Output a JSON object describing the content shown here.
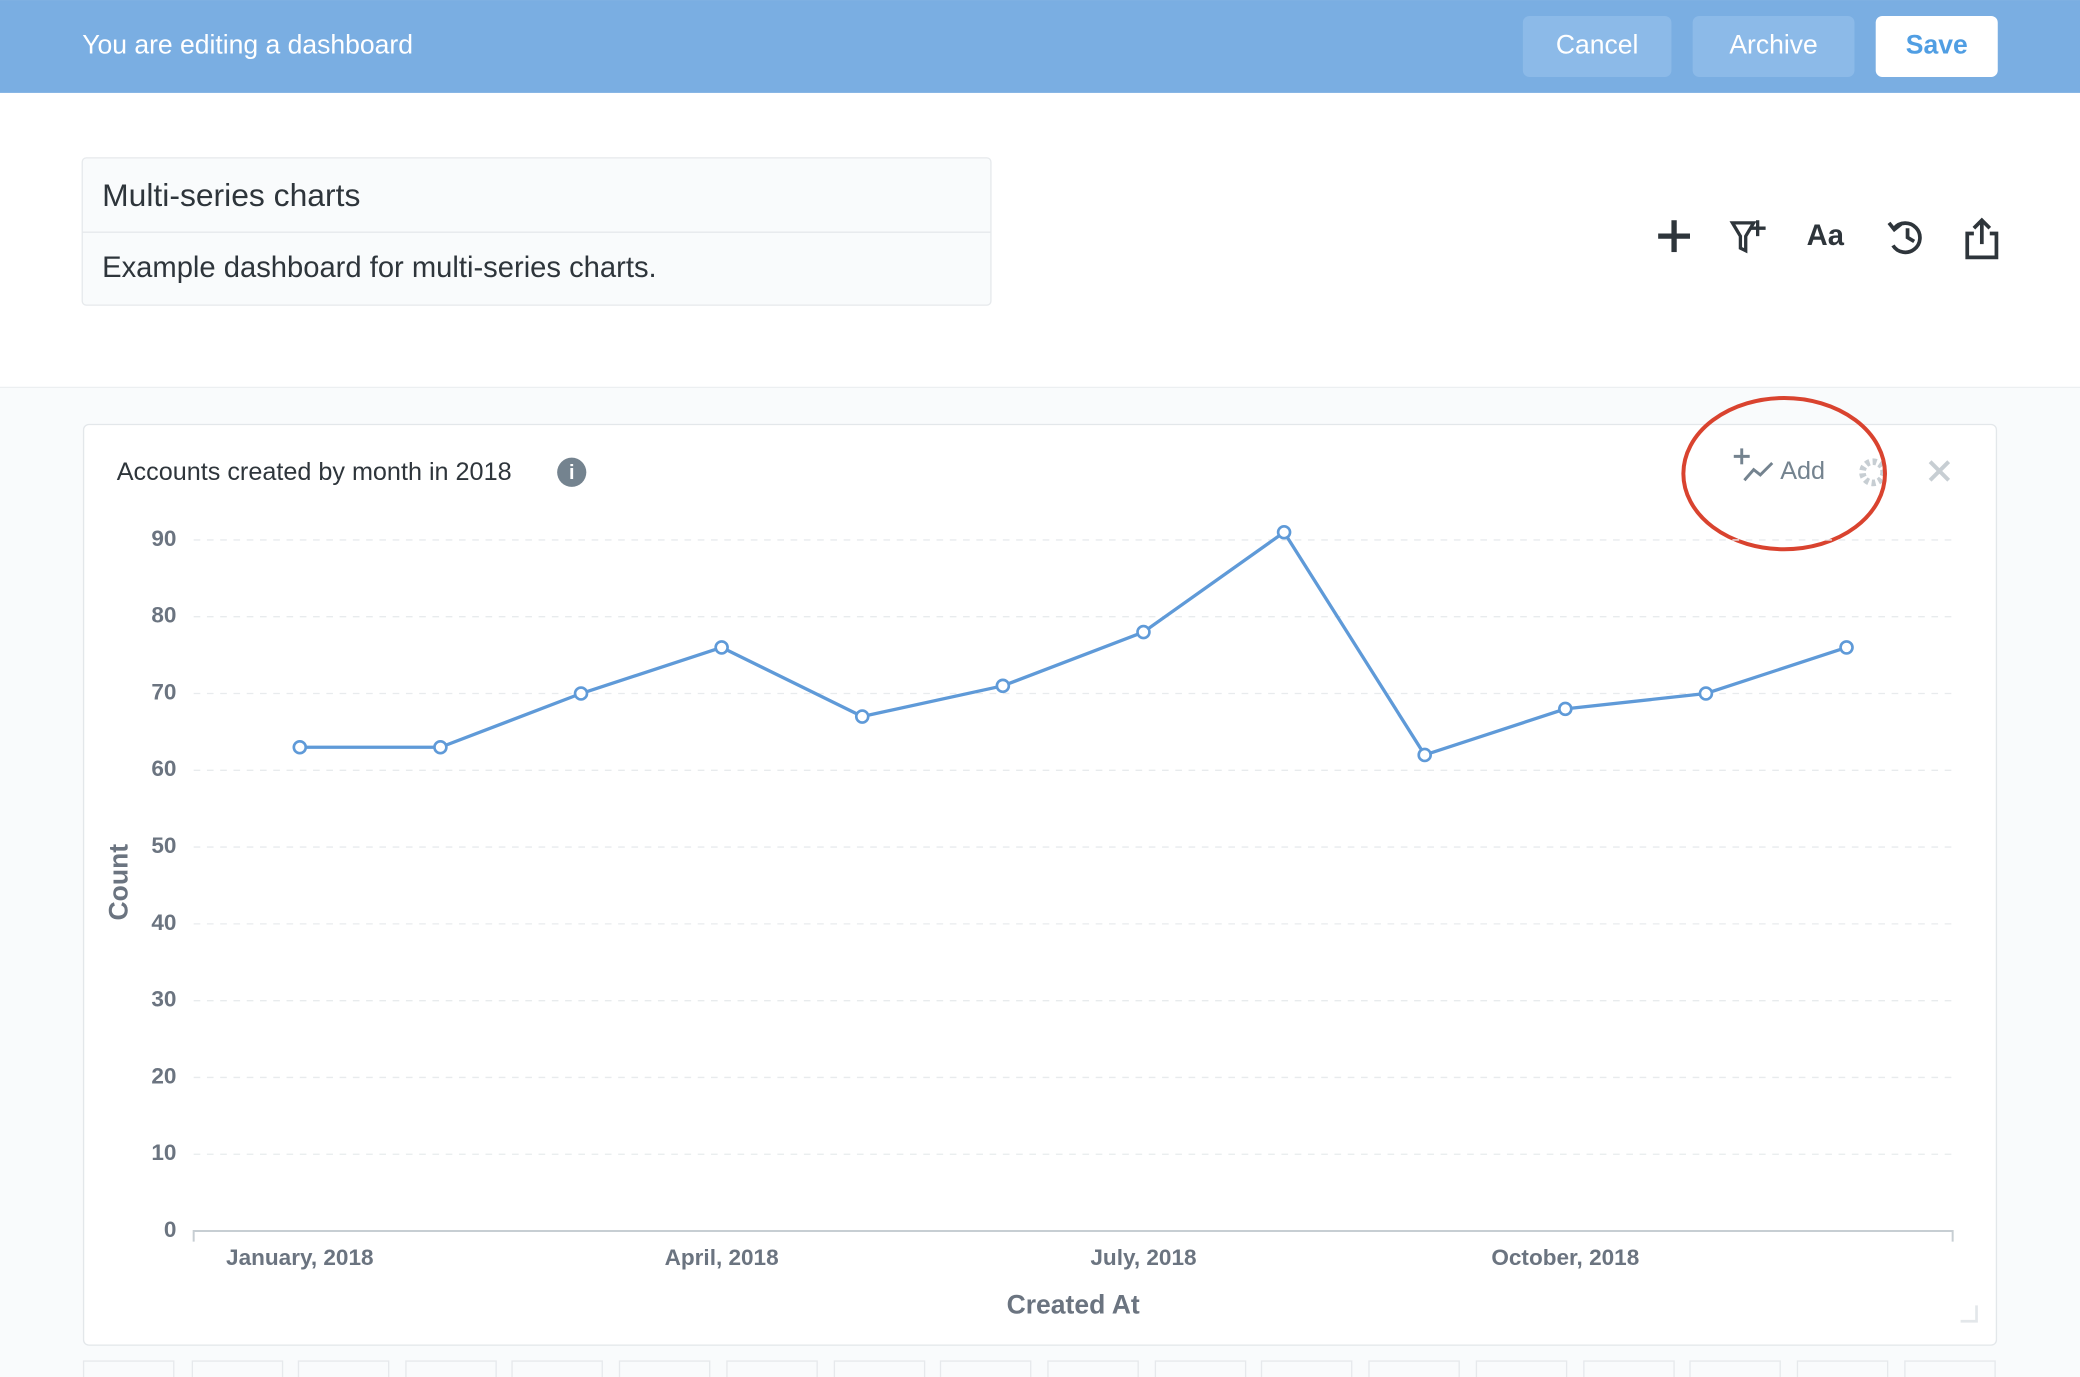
{
  "header": {
    "message": "You are editing a dashboard",
    "buttons": [
      "Cancel",
      "Archive",
      "Save"
    ]
  },
  "dashboard": {
    "title": "Multi-series charts",
    "description": "Example dashboard for multi-series charts.",
    "toolbar_text": "Aa"
  },
  "card": {
    "add_label": "Add"
  },
  "chart_data": {
    "type": "line",
    "title": "Accounts created by month in 2018",
    "x_label": "Created At",
    "y_label": "Count",
    "categories": [
      "January, 2018",
      null,
      null,
      "April, 2018",
      null,
      null,
      "July, 2018",
      null,
      null,
      "October, 2018",
      null,
      null
    ],
    "values": [
      63,
      63,
      70,
      76,
      67,
      71,
      78,
      91,
      62,
      68,
      70,
      76
    ],
    "color": "#5f9ad8",
    "ylim": [
      0,
      90
    ],
    "yticks": [
      0,
      10,
      20,
      30,
      40,
      50,
      60,
      70,
      80,
      90
    ],
    "grid": true
  }
}
